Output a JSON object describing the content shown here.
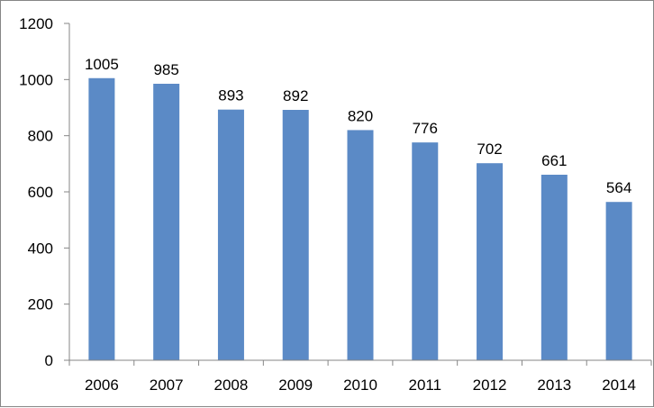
{
  "chart_data": {
    "type": "bar",
    "categories": [
      "2006",
      "2007",
      "2008",
      "2009",
      "2010",
      "2011",
      "2012",
      "2013",
      "2014"
    ],
    "values": [
      1005,
      985,
      893,
      892,
      820,
      776,
      702,
      661,
      564
    ],
    "data_labels": [
      "1005",
      "985",
      "893",
      "892",
      "820",
      "776",
      "702",
      "661",
      "564"
    ],
    "ylim": [
      0,
      1200
    ],
    "yticks": [
      0,
      200,
      400,
      600,
      800,
      1000,
      1200
    ],
    "ytick_labels": [
      "0",
      "200",
      "400",
      "600",
      "800",
      "1000",
      "1200"
    ],
    "title": "",
    "xlabel": "",
    "ylabel": "",
    "grid": false,
    "legend": "none",
    "colors": {
      "bar": "#5b8ac6",
      "axis": "#868686",
      "text": "#000000"
    }
  }
}
